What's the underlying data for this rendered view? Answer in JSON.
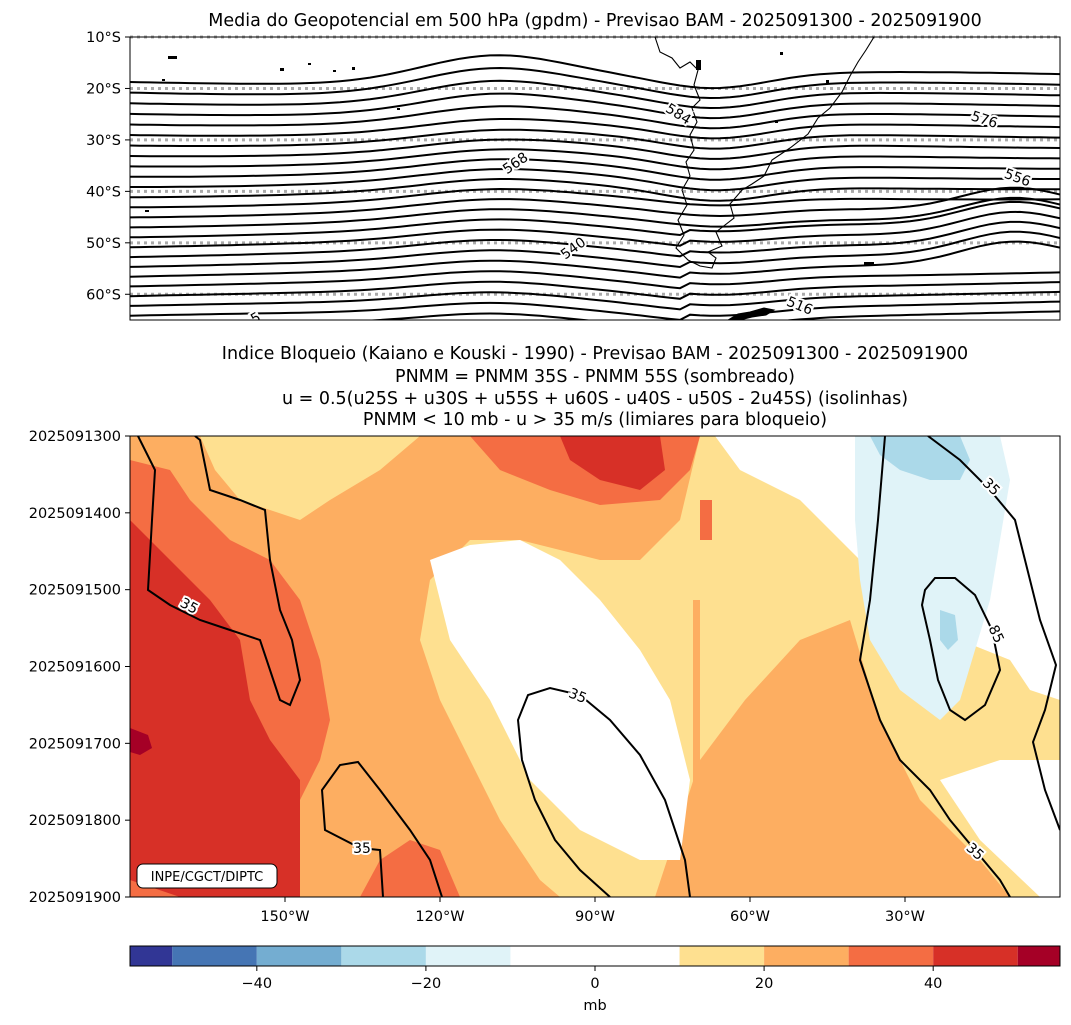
{
  "colors": {
    "background": "#ffffff",
    "contour": "#000000",
    "gridline": "#aaaaaa",
    "colormap": [
      "#313695",
      "#4575b4",
      "#74add1",
      "#abd9e9",
      "#e0f3f8",
      "#ffffff",
      "#fee090",
      "#fdae61",
      "#f46d43",
      "#d73027",
      "#a50026"
    ]
  },
  "chart_data": [
    {
      "type": "contour-map",
      "title": "Media do Geopotencial em 500 hPa (gpdm) - Previsao BAM - 2025091300 - 2025091900",
      "y_ticks": [
        "10°S",
        "20°S",
        "30°S",
        "40°S",
        "50°S",
        "60°S"
      ],
      "y_values": [
        -10,
        -20,
        -30,
        -40,
        -50,
        -60
      ],
      "ylim": [
        -65,
        -10
      ],
      "xlim": [
        -180,
        0
      ],
      "gridlines": "dotted every 10° latitude",
      "contour_interval_gpdm": 4,
      "contour_labels": [
        "584",
        "576",
        "568",
        "556",
        "540",
        "516",
        "5"
      ],
      "features": [
        "South America coastline",
        "Antarctic Peninsula"
      ]
    },
    {
      "type": "hovmoller",
      "title_lines": [
        "Indice Bloqueio (Kaiano e Kouski - 1990) - Previsao BAM - 2025091300 - 2025091900",
        "PNMM = PNMM 35S - PNMM 55S (sombreado)",
        "u = 0.5(u25S + u30S + u55S + u60S - u40S - u50S - 2u45S) (isolinhas)",
        "PNMM < 10 mb - u > 35 m/s (limiares para bloqueio)"
      ],
      "y_ticks": [
        "2025091300",
        "2025091400",
        "2025091500",
        "2025091600",
        "2025091700",
        "2025091800",
        "2025091900"
      ],
      "x_ticks": [
        "150°W",
        "120°W",
        "90°W",
        "60°W",
        "30°W"
      ],
      "x_values": [
        -150,
        -120,
        -90,
        -60,
        -30
      ],
      "xlim": [
        -180,
        0
      ],
      "shading": "PNMM difference (mb)",
      "isoline_levels": [
        35,
        85
      ],
      "isoline_labels": [
        "35",
        "35",
        "35",
        "35",
        "85",
        "35"
      ],
      "credit": "INPE/CGCT/DIPTC"
    },
    {
      "type": "colorbar",
      "boundaries": [
        -55,
        -50,
        -40,
        -30,
        -20,
        -10,
        10,
        20,
        30,
        40,
        50,
        55
      ],
      "tick_values": [
        -40,
        -20,
        0,
        20,
        40
      ],
      "tick_labels": [
        "−40",
        "−20",
        "0",
        "20",
        "40"
      ],
      "label": "mb"
    }
  ]
}
